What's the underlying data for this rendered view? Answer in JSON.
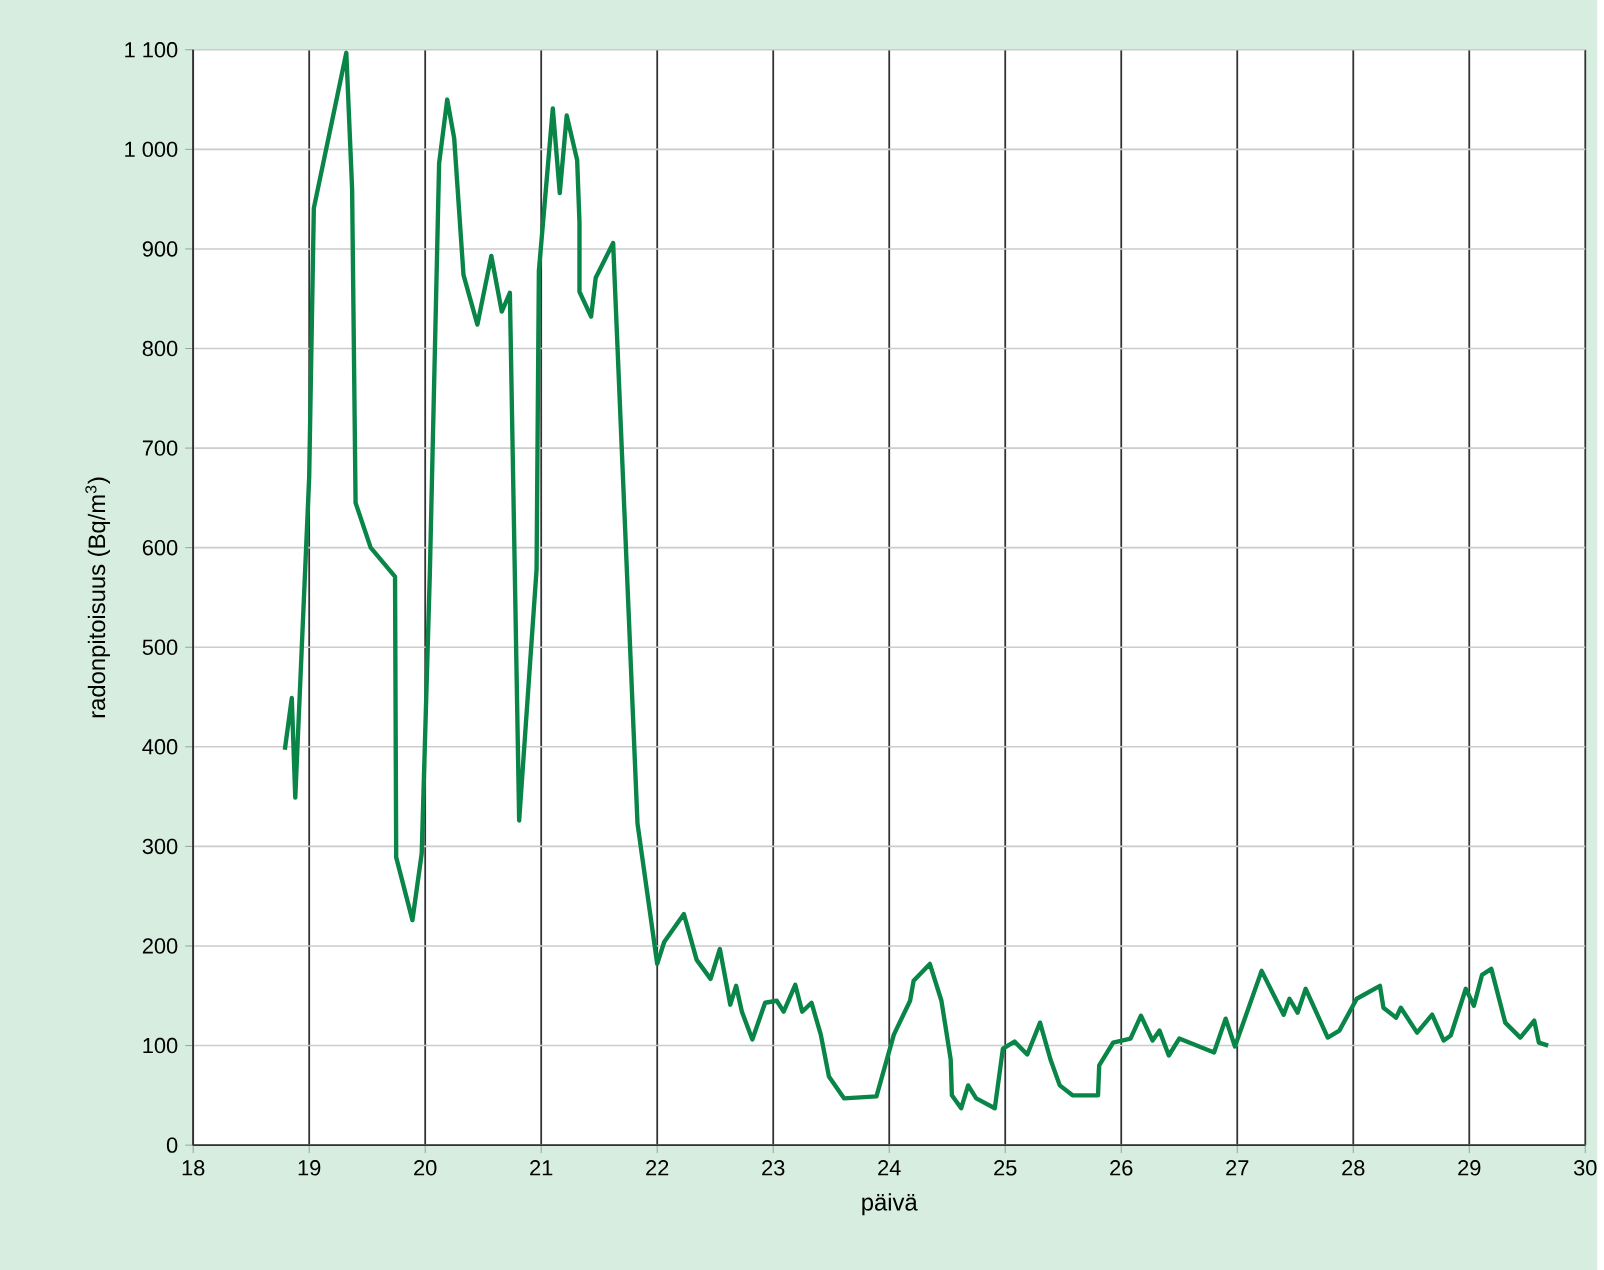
{
  "chart_data": {
    "type": "line",
    "xlabel": "päivä",
    "ylabel": "radonpitoisuus (Bq/m$^{3}$)",
    "xlim": [
      18,
      30
    ],
    "xticks": [
      18,
      19,
      20,
      21,
      22,
      23,
      24,
      25,
      26,
      27,
      28,
      29,
      30
    ],
    "ylim": [
      0,
      1100
    ],
    "yticks": [
      0,
      100,
      200,
      300,
      400,
      500,
      600,
      700,
      800,
      900,
      {
        "value": 1000,
        "label": "1 000"
      },
      {
        "value": 1100,
        "label": "1 100"
      }
    ],
    "grid": true,
    "marker": "none",
    "line_style": "solid",
    "series": [
      {
        "color": "#0a8548",
        "x": [
          18.79,
          18.85,
          18.88,
          19.0,
          19.04,
          19.32,
          19.37,
          19.4,
          19.53,
          19.74,
          19.75,
          19.89,
          19.97,
          20.04,
          20.12,
          20.19,
          20.25,
          20.33,
          20.45,
          20.57,
          20.66,
          20.73,
          20.81,
          20.96,
          20.98,
          21.1,
          21.16,
          21.22,
          21.31,
          21.33,
          21.33,
          21.43,
          21.47,
          21.62,
          21.83,
          22.0,
          22.06,
          22.23,
          22.34,
          22.46,
          22.54,
          22.63,
          22.68,
          22.73,
          22.82,
          22.93,
          23.03,
          23.09,
          23.19,
          23.25,
          23.33,
          23.41,
          23.48,
          23.61,
          23.89,
          24.04,
          24.18,
          24.21,
          24.35,
          24.45,
          24.53,
          24.54,
          24.62,
          24.68,
          24.75,
          24.91,
          24.98,
          25.08,
          25.19,
          25.3,
          25.39,
          25.47,
          25.58,
          25.8,
          25.81,
          25.93,
          26.08,
          26.17,
          26.27,
          26.33,
          26.41,
          26.5,
          26.8,
          26.9,
          26.98,
          27.21,
          27.4,
          27.45,
          27.52,
          27.59,
          27.78,
          27.88,
          28.03,
          28.23,
          28.26,
          28.37,
          28.41,
          28.55,
          28.68,
          28.78,
          28.84,
          28.97,
          29.04,
          29.11,
          29.19,
          29.31,
          29.44,
          29.56,
          29.6,
          29.68
        ],
        "values": [
          397,
          449,
          349,
          671,
          941,
          1097,
          960,
          645,
          600,
          571,
          289,
          226,
          293,
          574,
          986,
          1050,
          1011,
          874,
          824,
          893,
          837,
          856,
          326,
          578,
          878,
          1041,
          956,
          1034,
          989,
          926,
          857,
          832,
          871,
          906,
          323,
          182,
          204,
          232,
          186,
          167,
          197,
          141,
          160,
          134,
          106,
          143,
          145,
          134,
          161,
          134,
          143,
          111,
          69,
          47,
          49,
          111,
          145,
          165,
          182,
          145,
          86,
          50,
          37,
          60,
          47,
          37,
          97,
          104,
          91,
          123,
          86,
          60,
          50,
          50,
          80,
          103,
          107,
          130,
          105,
          115,
          90,
          107,
          93,
          127,
          99,
          175,
          131,
          147,
          133,
          157,
          108,
          115,
          147,
          160,
          138,
          128,
          138,
          113,
          131,
          105,
          110,
          157,
          140,
          171,
          177,
          123,
          108,
          125,
          103,
          100
        ]
      }
    ]
  }
}
